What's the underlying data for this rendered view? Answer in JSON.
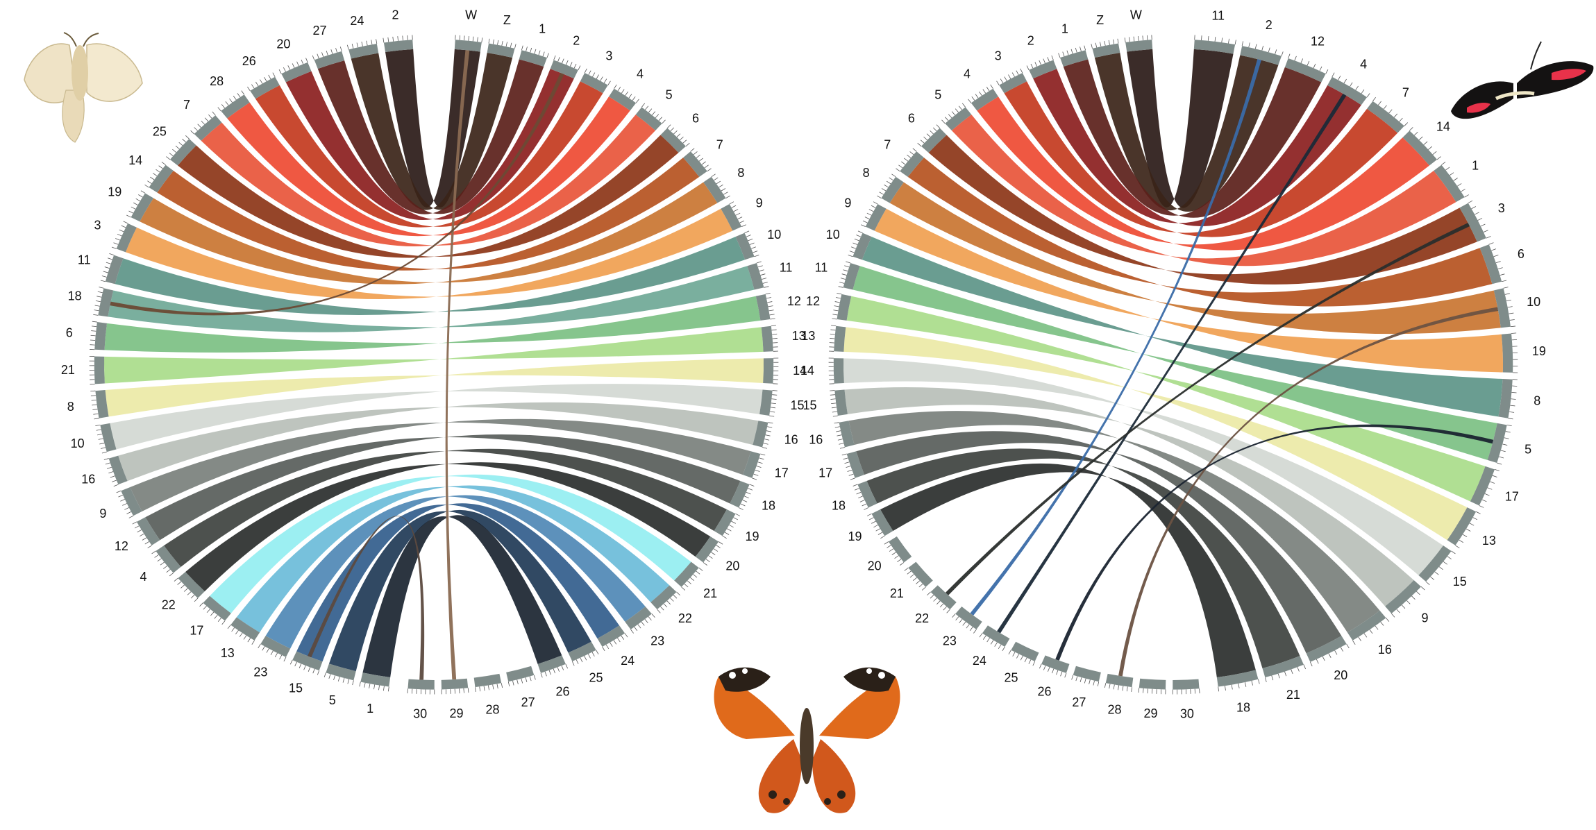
{
  "diagram": {
    "type": "circos-synteny",
    "left_panel": {
      "top_chromosomes": [
        "W",
        "Z",
        "1",
        "2",
        "3",
        "4",
        "5",
        "6",
        "7",
        "8",
        "9",
        "10",
        "11",
        "12",
        "13",
        "14",
        "15",
        "16",
        "17",
        "18",
        "19",
        "20",
        "21",
        "22",
        "23",
        "24",
        "25",
        "26",
        "27",
        "28",
        "29",
        "30"
      ],
      "other_chromosomes": [
        "2",
        "24",
        "27",
        "20",
        "26",
        "28",
        "7",
        "25",
        "14",
        "19",
        "3",
        "11",
        "18",
        "6",
        "21",
        "8",
        "10",
        "16",
        "9",
        "12",
        "4",
        "22",
        "17",
        "13",
        "23",
        "15",
        "5",
        "1"
      ],
      "ribbon_colors": [
        "#2a1a17",
        "#3b2418",
        "#5b1f1a",
        "#8b1e1e",
        "#c33a1e",
        "#ee4a32",
        "#e8553a",
        "#8c3517",
        "#b5531f",
        "#c97531",
        "#f0a050",
        "#5d9588",
        "#6fa896",
        "#7cc083",
        "#a9dc8a",
        "#ece9a6",
        "#d2d8d3",
        "#b8bfb8",
        "#7a807c",
        "#585d5a",
        "#3e423f",
        "#2a2e2c",
        "#94eef1",
        "#6bbcd9",
        "#4f88b5",
        "#325d8c",
        "#1f3956",
        "#1a2430",
        "#8c8a7a",
        "#7a5b48",
        "#5e4638"
      ],
      "cross_links": [
        {
          "from": "15",
          "to": "30",
          "color": "#5c4a3f"
        },
        {
          "from": "W",
          "to": "29",
          "color": "#8a6a52"
        },
        {
          "from": "18",
          "to": "2",
          "color": "#6b4a35"
        }
      ]
    },
    "right_panel": {
      "top_chromosomes": [
        "W",
        "Z",
        "1",
        "2",
        "3",
        "4",
        "5",
        "6",
        "7",
        "8",
        "9",
        "10",
        "11",
        "12",
        "13",
        "14",
        "15",
        "16",
        "17",
        "18",
        "19",
        "20",
        "21",
        "22",
        "23",
        "24",
        "25",
        "26",
        "27",
        "28",
        "29",
        "30"
      ],
      "other_chromosomes": [
        "11",
        "2",
        "12",
        "4",
        "7",
        "14",
        "1",
        "3",
        "6",
        "10",
        "19",
        "8",
        "5",
        "17",
        "13",
        "15",
        "9",
        "16",
        "20",
        "21",
        "18"
      ],
      "ribbon_colors": [
        "#2a1a17",
        "#3b2418",
        "#5b1f1a",
        "#8b1e1e",
        "#c33a1e",
        "#ee4a32",
        "#e8553a",
        "#8c3517",
        "#b5531f",
        "#c97531",
        "#f0a050",
        "#5d9588",
        "#7cc083",
        "#a9dc8a",
        "#ece9a6",
        "#d2d8d3",
        "#b8bfb8",
        "#7a807c",
        "#585d5a",
        "#3e423f",
        "#2a2e2c",
        "#94eef1",
        "#6bbcd9",
        "#4f88b5",
        "#325d8c",
        "#1f3956",
        "#1a2430",
        "#8c8a7a",
        "#7a5b48",
        "#5e4638"
      ],
      "cross_links": [
        {
          "from": "2",
          "to": "23",
          "color": "#3a6ca8"
        },
        {
          "from": "4",
          "to": "24",
          "color": "#1b2a38"
        },
        {
          "from": "3",
          "to": "22",
          "color": "#2a2e2c"
        },
        {
          "from": "10",
          "to": "28",
          "color": "#6b5242"
        },
        {
          "from": "5",
          "to": "26",
          "color": "#1a2430"
        }
      ]
    },
    "images": {
      "moth": "silkmoth-image",
      "heliconius": "heliconius-butterfly-image",
      "painted_lady": "painted-lady-butterfly-image"
    }
  }
}
